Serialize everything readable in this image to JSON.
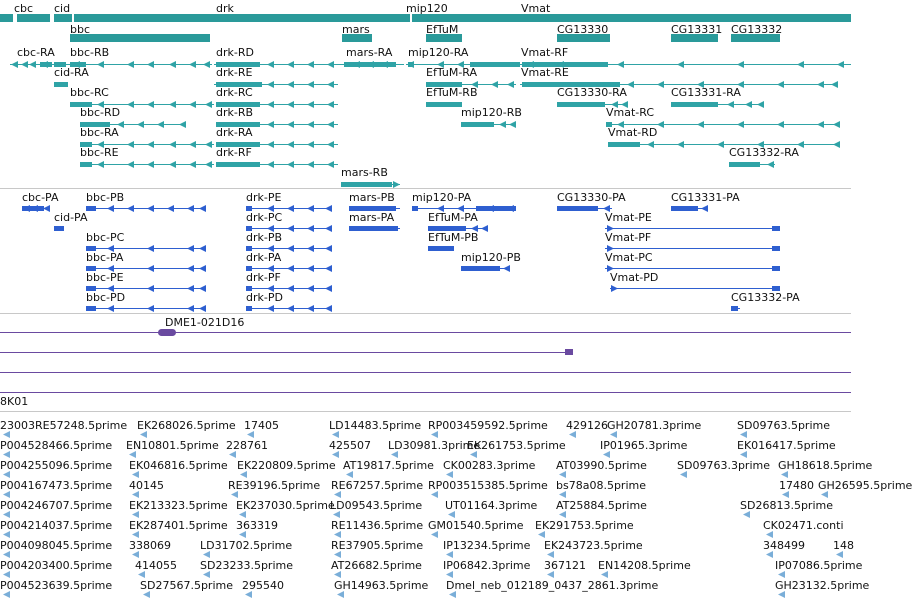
{
  "colors": {
    "teal": "#2a9a9a",
    "teal_light": "#2fa3a6",
    "blue": "#2e5fd0",
    "purple": "#6a4aa0",
    "divider": "#c8c8c8",
    "est": "#7aaed8"
  },
  "genes": [
    {
      "label": "cbc"
    },
    {
      "label": "cid"
    },
    {
      "label": "bbc"
    },
    {
      "label": "drk"
    },
    {
      "label": "mars"
    },
    {
      "label": "mip120"
    },
    {
      "label": "Vmat"
    },
    {
      "label": "EfTuM"
    },
    {
      "label": "CG13330"
    },
    {
      "label": "CG13331"
    },
    {
      "label": "CG13332"
    }
  ],
  "transcripts": [
    {
      "label": "cbc-RA"
    },
    {
      "label": "bbc-RB"
    },
    {
      "label": "drk-RD"
    },
    {
      "label": "mars-RA"
    },
    {
      "label": "mip120-RA"
    },
    {
      "label": "Vmat-RF"
    },
    {
      "label": "cid-RA"
    },
    {
      "label": "drk-RE"
    },
    {
      "label": "EfTuM-RA"
    },
    {
      "label": "Vmat-RE"
    },
    {
      "label": "bbc-RC"
    },
    {
      "label": "drk-RC"
    },
    {
      "label": "EfTuM-RB"
    },
    {
      "label": "CG13330-RA"
    },
    {
      "label": "CG13331-RA"
    },
    {
      "label": "bbc-RD"
    },
    {
      "label": "drk-RB"
    },
    {
      "label": "mip120-RB"
    },
    {
      "label": "Vmat-RC"
    },
    {
      "label": "bbc-RA"
    },
    {
      "label": "drk-RA"
    },
    {
      "label": "Vmat-RD"
    },
    {
      "label": "bbc-RE"
    },
    {
      "label": "drk-RF"
    },
    {
      "label": "CG13332-RA"
    },
    {
      "label": "mars-RB"
    }
  ],
  "proteins": [
    {
      "label": "cbc-PA"
    },
    {
      "label": "bbc-PB"
    },
    {
      "label": "drk-PE"
    },
    {
      "label": "mars-PB"
    },
    {
      "label": "mip120-PA"
    },
    {
      "label": "CG13330-PA"
    },
    {
      "label": "CG13331-PA"
    },
    {
      "label": "cid-PA"
    },
    {
      "label": "drk-PC"
    },
    {
      "label": "mars-PA"
    },
    {
      "label": "EfTuM-PA"
    },
    {
      "label": "Vmat-PE"
    },
    {
      "label": "bbc-PC"
    },
    {
      "label": "drk-PB"
    },
    {
      "label": "EfTuM-PB"
    },
    {
      "label": "Vmat-PF"
    },
    {
      "label": "bbc-PA"
    },
    {
      "label": "drk-PA"
    },
    {
      "label": "mip120-PB"
    },
    {
      "label": "Vmat-PC"
    },
    {
      "label": "bbc-PE"
    },
    {
      "label": "drk-PF"
    },
    {
      "label": "Vmat-PD"
    },
    {
      "label": "bbc-PD"
    },
    {
      "label": "drk-PD"
    },
    {
      "label": "CG13332-PA"
    }
  ],
  "clone": {
    "label": "DME1-021D16"
  },
  "bac": {
    "label": "8K01"
  },
  "ests": [
    {
      "label": "23003RE57248.5prime"
    },
    {
      "label": "EK268026.5prime"
    },
    {
      "label": "17405"
    },
    {
      "label": "LD14483.5prime"
    },
    {
      "label": "RP003459592.5prime"
    },
    {
      "label": "429126"
    },
    {
      "label": "GH20781.3prime"
    },
    {
      "label": "SD09763.5prime"
    },
    {
      "label": "P004528466.5prime"
    },
    {
      "label": "EN10801.5prime"
    },
    {
      "label": "228761"
    },
    {
      "label": "425507"
    },
    {
      "label": "LD30981.3prime"
    },
    {
      "label": "EK261753.5prime"
    },
    {
      "label": "IP01965.3prime"
    },
    {
      "label": "EK016417.5prime"
    },
    {
      "label": "P004255096.5prime"
    },
    {
      "label": "EK046816.5prime"
    },
    {
      "label": "EK220809.5prime"
    },
    {
      "label": "AT19817.5prime"
    },
    {
      "label": "CK00283.3prime"
    },
    {
      "label": "AT03990.5prime"
    },
    {
      "label": "SD09763.3prime"
    },
    {
      "label": "GH18618.5prime"
    },
    {
      "label": "P004167473.5prime"
    },
    {
      "label": "40145"
    },
    {
      "label": "RE39196.5prime"
    },
    {
      "label": "RE67257.5prime"
    },
    {
      "label": "RP003515385.5prime"
    },
    {
      "label": "bs78a08.5prime"
    },
    {
      "label": "17480"
    },
    {
      "label": "GH26595.5prime"
    },
    {
      "label": "P004246707.5prime"
    },
    {
      "label": "EK213323.5prime"
    },
    {
      "label": "EK237030.5prime"
    },
    {
      "label": "LD09543.5prime"
    },
    {
      "label": "UT01164.3prime"
    },
    {
      "label": "AT25884.5prime"
    },
    {
      "label": "SD26813.5prime"
    },
    {
      "label": "P004214037.5prime"
    },
    {
      "label": "EK287401.5prime"
    },
    {
      "label": "363319"
    },
    {
      "label": "RE11436.5prime"
    },
    {
      "label": "GM01540.5prime"
    },
    {
      "label": "EK291753.5prime"
    },
    {
      "label": "CK02471.conti"
    },
    {
      "label": "P004098045.5prime"
    },
    {
      "label": "338069"
    },
    {
      "label": "LD31702.5prime"
    },
    {
      "label": "RE37905.5prime"
    },
    {
      "label": "IP13234.5prime"
    },
    {
      "label": "EK243723.5prime"
    },
    {
      "label": "348499"
    },
    {
      "label": "148"
    },
    {
      "label": "P004203400.5prime"
    },
    {
      "label": "414055"
    },
    {
      "label": "SD23233.5prime"
    },
    {
      "label": "AT26682.5prime"
    },
    {
      "label": "IP06842.3prime"
    },
    {
      "label": "367121"
    },
    {
      "label": "EN14208.5prime"
    },
    {
      "label": "IP07086.5prime"
    },
    {
      "label": "P004523639.5prime"
    },
    {
      "label": "SD27567.5prime"
    },
    {
      "label": "295540"
    },
    {
      "label": "GH14963.5prime"
    },
    {
      "label": "Dmel_neb_012189_0437_2861.3prime"
    },
    {
      "label": "GH23132.5prime"
    }
  ]
}
